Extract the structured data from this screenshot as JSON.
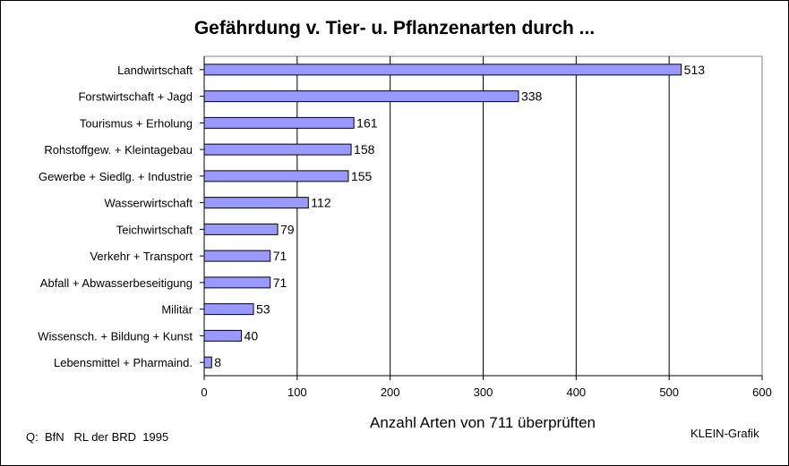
{
  "chart_data": {
    "type": "bar",
    "orientation": "horizontal",
    "title": "Gefährdung v. Tier- u. Pflanzenarten durch ...",
    "xlabel": "Anzahl Arten von 711 überprüften",
    "ylabel": "",
    "xlim": [
      0,
      600
    ],
    "xticks": [
      0,
      100,
      200,
      300,
      400,
      500,
      600
    ],
    "grid": "vertical",
    "bar_color": "#9999ff",
    "categories": [
      "Landwirtschaft",
      "Forstwirtschaft + Jagd",
      "Tourismus + Erholung",
      "Rohstoffgew. + Kleintagebau",
      "Gewerbe + Siedlg. + Industrie",
      "Wasserwirtschaft",
      "Teichwirtschaft",
      "Verkehr + Transport",
      "Abfall + Abwasserbeseitigung",
      "Militär",
      "Wissensch. + Bildung + Kunst",
      "Lebensmittel + Pharmaind."
    ],
    "values": [
      513,
      338,
      161,
      158,
      155,
      112,
      79,
      71,
      71,
      53,
      40,
      8
    ]
  },
  "footer": {
    "source": "Q:  BfN   RL der BRD  1995",
    "credit": "KLEIN-Grafik"
  }
}
